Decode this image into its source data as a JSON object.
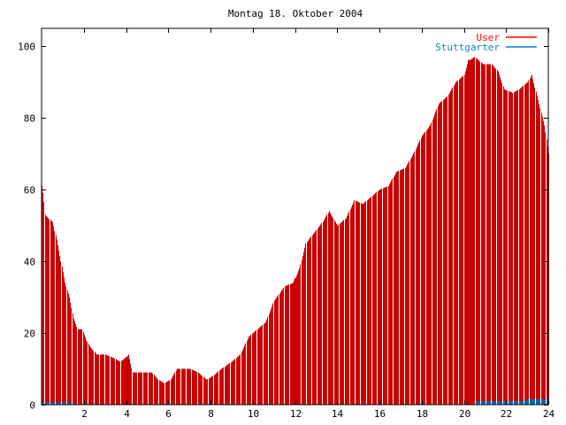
{
  "chart_data": {
    "type": "bar",
    "title": "Montag 18. Oktober 2004",
    "xlabel": "",
    "ylabel": "",
    "xlim": [
      0,
      24
    ],
    "ylim": [
      0,
      105
    ],
    "x_ticks": [
      2,
      4,
      6,
      8,
      10,
      12,
      14,
      16,
      18,
      20,
      22,
      24
    ],
    "y_ticks": [
      0,
      20,
      40,
      60,
      80,
      100
    ],
    "grid": false,
    "legend_position": "top-right",
    "colors": {
      "user": "#cc0000",
      "user_legend": "#ff0000",
      "stuttgarter": "#0066aa",
      "stuttgarter_legend": "#0088cc",
      "axis": "#000000"
    },
    "series": [
      {
        "name": "User",
        "style": "impulses",
        "anchors": [
          [
            0.0,
            61
          ],
          [
            0.08,
            58
          ],
          [
            0.15,
            53
          ],
          [
            0.3,
            52
          ],
          [
            0.5,
            51
          ],
          [
            0.7,
            46
          ],
          [
            0.9,
            40
          ],
          [
            1.1,
            34
          ],
          [
            1.3,
            30
          ],
          [
            1.5,
            24
          ],
          [
            1.7,
            21
          ],
          [
            1.9,
            21
          ],
          [
            2.1,
            18
          ],
          [
            2.3,
            16
          ],
          [
            2.6,
            14
          ],
          [
            3.0,
            14
          ],
          [
            3.4,
            13
          ],
          [
            3.7,
            12
          ],
          [
            3.95,
            13
          ],
          [
            4.1,
            14
          ],
          [
            4.3,
            9
          ],
          [
            4.8,
            9
          ],
          [
            5.2,
            9
          ],
          [
            5.5,
            7
          ],
          [
            5.8,
            6
          ],
          [
            6.1,
            7
          ],
          [
            6.4,
            10
          ],
          [
            6.7,
            10
          ],
          [
            7.0,
            10
          ],
          [
            7.4,
            9
          ],
          [
            7.8,
            7
          ],
          [
            8.1,
            8
          ],
          [
            8.5,
            10
          ],
          [
            9.0,
            12
          ],
          [
            9.4,
            14
          ],
          [
            9.8,
            19
          ],
          [
            10.2,
            21
          ],
          [
            10.6,
            23
          ],
          [
            11.0,
            29
          ],
          [
            11.5,
            33
          ],
          [
            11.9,
            34
          ],
          [
            12.2,
            38
          ],
          [
            12.5,
            45
          ],
          [
            12.9,
            48
          ],
          [
            13.3,
            51
          ],
          [
            13.6,
            54
          ],
          [
            14.0,
            50
          ],
          [
            14.4,
            52
          ],
          [
            14.8,
            57
          ],
          [
            15.2,
            56
          ],
          [
            15.6,
            58
          ],
          [
            16.0,
            60
          ],
          [
            16.4,
            61
          ],
          [
            16.8,
            65
          ],
          [
            17.2,
            66
          ],
          [
            17.6,
            70
          ],
          [
            18.0,
            75
          ],
          [
            18.4,
            78
          ],
          [
            18.8,
            84
          ],
          [
            19.2,
            86
          ],
          [
            19.6,
            90
          ],
          [
            20.0,
            92
          ],
          [
            20.2,
            96
          ],
          [
            20.5,
            97
          ],
          [
            20.9,
            95
          ],
          [
            21.3,
            95
          ],
          [
            21.6,
            93
          ],
          [
            21.9,
            88
          ],
          [
            22.3,
            87
          ],
          [
            22.6,
            88
          ],
          [
            23.0,
            90
          ],
          [
            23.2,
            92
          ],
          [
            23.5,
            85
          ],
          [
            23.8,
            78
          ],
          [
            24.0,
            70
          ]
        ]
      },
      {
        "name": "Stuttgarter",
        "style": "impulses",
        "values_note": "",
        "anchors": [
          [
            0.0,
            0.6
          ],
          [
            1.5,
            0.6
          ],
          [
            1.55,
            0
          ],
          [
            7.4,
            0
          ],
          [
            7.45,
            0.6
          ],
          [
            7.6,
            0
          ],
          [
            9.2,
            0
          ],
          [
            9.25,
            0.5
          ],
          [
            9.4,
            0
          ],
          [
            20.5,
            0
          ],
          [
            20.55,
            1
          ],
          [
            22.9,
            1
          ],
          [
            22.95,
            1.5
          ],
          [
            24.0,
            1.5
          ]
        ]
      }
    ],
    "highlight_bars": [
      4.0,
      12.0,
      20.25
    ]
  }
}
